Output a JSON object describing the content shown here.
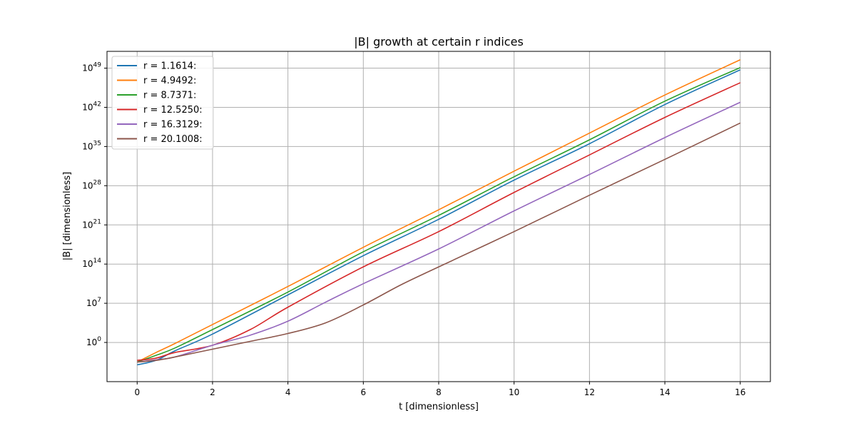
{
  "chart_data": {
    "type": "line",
    "title": "|B| growth at certain r indices",
    "xlabel": "t [dimensionless]",
    "ylabel": "|B| [dimensionless]",
    "yscale": "log",
    "xlim": [
      -0.8,
      16.8
    ],
    "ylim_log10": [
      -7,
      52
    ],
    "grid": true,
    "legend_position": "upper-left",
    "x_ticks": [
      0,
      2,
      4,
      6,
      8,
      10,
      12,
      14,
      16
    ],
    "x_tick_labels": [
      "0",
      "2",
      "4",
      "6",
      "8",
      "10",
      "12",
      "14",
      "16"
    ],
    "y_tick_exponents": [
      0,
      7,
      14,
      21,
      28,
      35,
      42,
      49
    ],
    "y_tick_base": "10",
    "series": [
      {
        "name": "r = 1.1614:",
        "color": "#1f77b4",
        "points": [
          [
            0,
            -4
          ],
          [
            0.5,
            -3.2
          ],
          [
            1,
            -1.5
          ],
          [
            2,
            1.5
          ],
          [
            4,
            8.5
          ],
          [
            6,
            15.5
          ],
          [
            8,
            22
          ],
          [
            10,
            29
          ],
          [
            12,
            35.5
          ],
          [
            14,
            42.5
          ],
          [
            16,
            48.7
          ]
        ]
      },
      {
        "name": "r = 4.9492:",
        "color": "#ff7f0e",
        "points": [
          [
            0,
            -3.5
          ],
          [
            0.5,
            -1.8
          ],
          [
            1,
            -0.2
          ],
          [
            2,
            3.2
          ],
          [
            4,
            10
          ],
          [
            6,
            17
          ],
          [
            8,
            23.7
          ],
          [
            10,
            30.6
          ],
          [
            12,
            37.4
          ],
          [
            14,
            44.2
          ],
          [
            16,
            50.5
          ]
        ]
      },
      {
        "name": "r = 8.7371:",
        "color": "#2ca02c",
        "points": [
          [
            0,
            -3.5
          ],
          [
            0.5,
            -2.3
          ],
          [
            1,
            -1
          ],
          [
            2,
            2.3
          ],
          [
            4,
            9
          ],
          [
            6,
            16.2
          ],
          [
            8,
            22.7
          ],
          [
            10,
            29.6
          ],
          [
            12,
            36.2
          ],
          [
            14,
            43.1
          ],
          [
            16,
            49.1
          ]
        ]
      },
      {
        "name": "r = 12.5250:",
        "color": "#d62728",
        "points": [
          [
            0,
            -3.2
          ],
          [
            0.5,
            -2.8
          ],
          [
            1,
            -1.8
          ],
          [
            2,
            -0.5
          ],
          [
            3,
            2.3
          ],
          [
            4,
            6.3
          ],
          [
            6,
            13.5
          ],
          [
            8,
            19.8
          ],
          [
            10,
            26.8
          ],
          [
            12,
            33.5
          ],
          [
            14,
            40.2
          ],
          [
            16,
            46.4
          ]
        ]
      },
      {
        "name": "r = 16.3129:",
        "color": "#9467bd",
        "points": [
          [
            0,
            -3.5
          ],
          [
            0.5,
            -3.1
          ],
          [
            1,
            -2.6
          ],
          [
            2,
            -0.5
          ],
          [
            3,
            1.3
          ],
          [
            4,
            3.8
          ],
          [
            5,
            7.2
          ],
          [
            6,
            10.5
          ],
          [
            8,
            16.7
          ],
          [
            10,
            23.5
          ],
          [
            12,
            30
          ],
          [
            14,
            36.6
          ],
          [
            16,
            42.9
          ]
        ]
      },
      {
        "name": "r = 20.1008:",
        "color": "#8c564b",
        "points": [
          [
            0,
            -3.5
          ],
          [
            0.5,
            -3.2
          ],
          [
            1,
            -2.6
          ],
          [
            2,
            -1.2
          ],
          [
            3,
            0.2
          ],
          [
            4,
            1.6
          ],
          [
            5,
            3.5
          ],
          [
            6,
            6.7
          ],
          [
            7,
            10.3
          ],
          [
            8,
            13.5
          ],
          [
            10,
            19.8
          ],
          [
            12,
            26.3
          ],
          [
            14,
            32.7
          ],
          [
            16,
            39.2
          ]
        ]
      }
    ]
  }
}
